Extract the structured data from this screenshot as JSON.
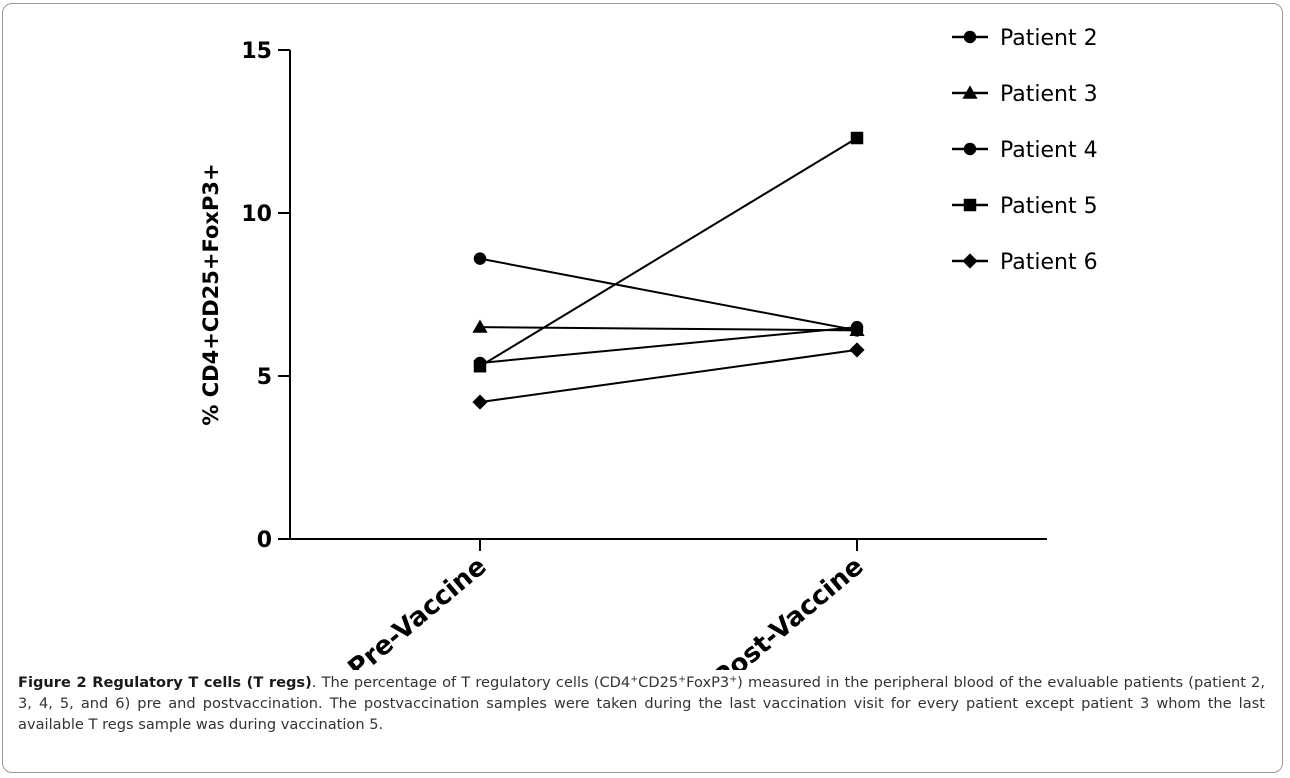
{
  "chart_data": {
    "type": "line",
    "categories": [
      "Pre-Vaccine",
      "Post-Vaccine"
    ],
    "ylabel": "% CD4+CD25+FoxP3+",
    "ylim": [
      0,
      15
    ],
    "yticks": [
      0,
      5,
      10,
      15
    ],
    "legend_position": "top-right",
    "series": [
      {
        "name": "Patient 2",
        "marker": "circle",
        "values": [
          5.4,
          6.5
        ]
      },
      {
        "name": "Patient 3",
        "marker": "triangle",
        "values": [
          6.5,
          6.4
        ]
      },
      {
        "name": "Patient 4",
        "marker": "circle",
        "values": [
          8.6,
          6.4
        ]
      },
      {
        "name": "Patient 5",
        "marker": "square",
        "values": [
          5.3,
          12.3
        ]
      },
      {
        "name": "Patient 6",
        "marker": "diamond",
        "values": [
          4.2,
          5.8
        ]
      }
    ]
  },
  "caption": {
    "label": "Figure 2 Regulatory T cells (T regs)",
    "text_before_cd4": ". The percentage of T regulatory cells (CD4",
    "sup1": "+",
    "cd25": "CD25",
    "sup2": "+",
    "foxp3": "FoxP3",
    "sup3": "+",
    "text_after": ") measured in the peripheral blood of the evaluable patients (patient 2, 3, 4, 5, and 6) pre and postvaccination. The postvaccination samples were taken during the last vaccination visit for every patient except patient 3 whom the last available T regs sample was during vaccination 5."
  }
}
